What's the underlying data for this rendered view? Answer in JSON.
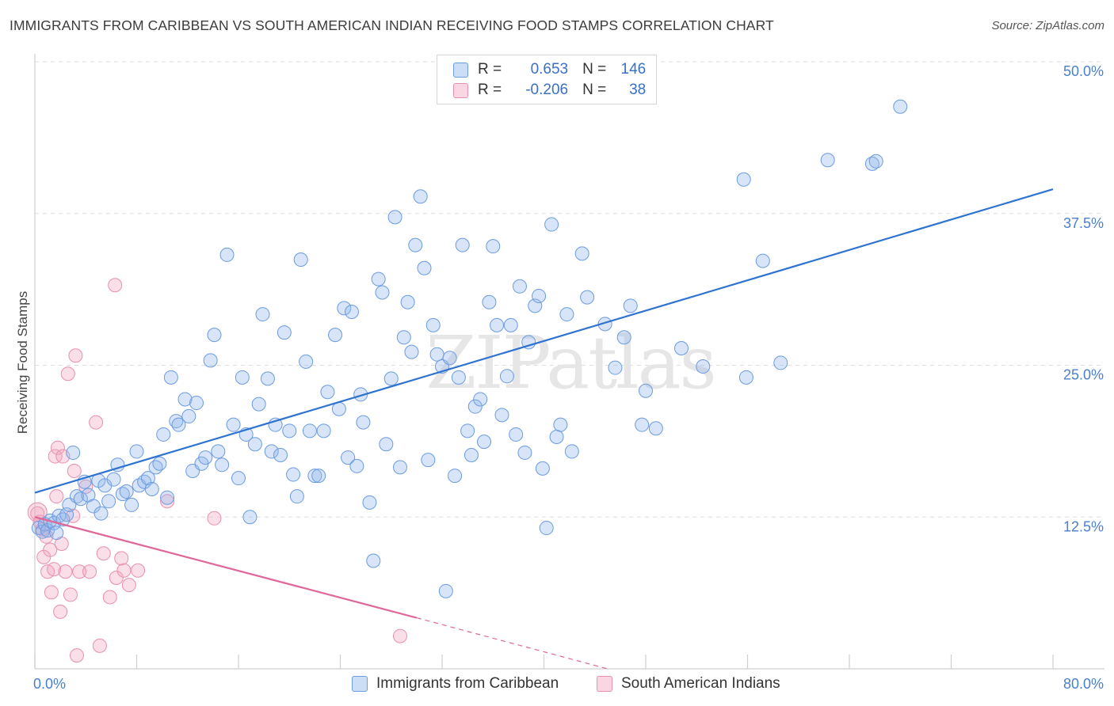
{
  "title": "IMMIGRANTS FROM CARIBBEAN VS SOUTH AMERICAN INDIAN RECEIVING FOOD STAMPS CORRELATION CHART",
  "source": "Source: ZipAtlas.com",
  "watermark": "ZIPatlas",
  "legend": {
    "rows": [
      {
        "r_label": "R =",
        "r_value": "0.653",
        "n_label": "N =",
        "n_value": "146",
        "color": "#8fb4ea"
      },
      {
        "r_label": "R =",
        "r_value": "-0.206",
        "n_label": "N =",
        "n_value": "38",
        "color": "#f2a3bd"
      }
    ]
  },
  "bottom_legend": [
    {
      "label": "Immigrants from Caribbean",
      "color": "#8fb4ea"
    },
    {
      "label": "South American Indians",
      "color": "#f2a3bd"
    }
  ],
  "colors": {
    "blue_fill": "rgba(143,180,234,0.35)",
    "blue_stroke": "#6b9be0",
    "blue_line": "#2f73d0",
    "pink_fill": "rgba(242,163,189,0.35)",
    "pink_stroke": "#e88fae",
    "pink_line": "#e0679a",
    "grid": "#dedede",
    "tick_label": "#4a7fd0"
  },
  "chart_data": {
    "type": "scatter",
    "title": "IMMIGRANTS FROM CARIBBEAN VS SOUTH AMERICAN INDIAN RECEIVING FOOD STAMPS CORRELATION CHART",
    "xlabel": "",
    "ylabel": "Receiving Food Stamps",
    "xlim": [
      0,
      80
    ],
    "ylim": [
      0,
      50
    ],
    "x_tick_labels": [
      "0.0%",
      "80.0%"
    ],
    "y_ticks": [
      12.5,
      25.0,
      37.5,
      50.0
    ],
    "y_tick_labels": [
      "12.5%",
      "25.0%",
      "37.5%",
      "50.0%"
    ],
    "grid": "horizontal dashed",
    "legend_position": "top-center",
    "series": [
      {
        "name": "Immigrants from Caribbean",
        "r": 0.653,
        "n": 146,
        "trend": {
          "x": [
            0,
            80
          ],
          "y": [
            14.5,
            39.5
          ],
          "style": "solid"
        },
        "points": [
          [
            0.3,
            11.6
          ],
          [
            0.6,
            11.3
          ],
          [
            0.8,
            11.9
          ],
          [
            1.0,
            11.4
          ],
          [
            1.2,
            12.2
          ],
          [
            1.5,
            12.0
          ],
          [
            1.7,
            11.2
          ],
          [
            1.9,
            12.6
          ],
          [
            2.2,
            12.3
          ],
          [
            2.5,
            12.7
          ],
          [
            2.7,
            13.5
          ],
          [
            3.0,
            17.8
          ],
          [
            3.3,
            14.2
          ],
          [
            3.6,
            14.0
          ],
          [
            3.9,
            15.4
          ],
          [
            4.2,
            14.3
          ],
          [
            4.6,
            13.4
          ],
          [
            5.0,
            15.5
          ],
          [
            5.2,
            12.8
          ],
          [
            5.5,
            15.1
          ],
          [
            5.8,
            13.8
          ],
          [
            6.2,
            15.6
          ],
          [
            6.5,
            16.8
          ],
          [
            6.9,
            14.4
          ],
          [
            7.2,
            14.6
          ],
          [
            7.6,
            13.5
          ],
          [
            8.0,
            17.9
          ],
          [
            8.2,
            15.1
          ],
          [
            8.6,
            15.4
          ],
          [
            8.9,
            15.7
          ],
          [
            9.2,
            14.8
          ],
          [
            9.5,
            16.6
          ],
          [
            9.8,
            16.9
          ],
          [
            10.1,
            19.3
          ],
          [
            10.4,
            14.1
          ],
          [
            10.7,
            24.0
          ],
          [
            11.1,
            20.4
          ],
          [
            11.3,
            20.1
          ],
          [
            11.8,
            22.2
          ],
          [
            12.1,
            20.8
          ],
          [
            12.4,
            16.3
          ],
          [
            12.7,
            21.9
          ],
          [
            13.1,
            16.9
          ],
          [
            13.4,
            17.4
          ],
          [
            13.8,
            25.4
          ],
          [
            14.1,
            27.5
          ],
          [
            14.4,
            17.9
          ],
          [
            14.7,
            16.8
          ],
          [
            15.1,
            34.1
          ],
          [
            15.6,
            20.1
          ],
          [
            16.0,
            15.7
          ],
          [
            16.3,
            24.0
          ],
          [
            16.6,
            19.3
          ],
          [
            16.9,
            12.5
          ],
          [
            17.3,
            18.5
          ],
          [
            17.6,
            21.8
          ],
          [
            17.9,
            29.2
          ],
          [
            18.3,
            23.9
          ],
          [
            18.6,
            17.9
          ],
          [
            18.9,
            20.1
          ],
          [
            19.3,
            17.6
          ],
          [
            19.6,
            27.7
          ],
          [
            20.0,
            19.6
          ],
          [
            20.3,
            16.0
          ],
          [
            20.6,
            14.2
          ],
          [
            20.9,
            33.7
          ],
          [
            21.3,
            25.3
          ],
          [
            21.6,
            19.6
          ],
          [
            22.0,
            15.9
          ],
          [
            22.3,
            15.9
          ],
          [
            22.7,
            19.6
          ],
          [
            23.0,
            22.8
          ],
          [
            23.6,
            27.5
          ],
          [
            23.9,
            21.4
          ],
          [
            24.3,
            29.7
          ],
          [
            24.6,
            17.4
          ],
          [
            24.9,
            29.4
          ],
          [
            25.3,
            16.7
          ],
          [
            25.6,
            22.6
          ],
          [
            25.8,
            20.3
          ],
          [
            26.3,
            13.7
          ],
          [
            26.6,
            8.9
          ],
          [
            27.0,
            32.1
          ],
          [
            27.3,
            31.0
          ],
          [
            27.6,
            18.5
          ],
          [
            28.0,
            23.9
          ],
          [
            28.3,
            37.2
          ],
          [
            28.7,
            16.6
          ],
          [
            29.0,
            27.3
          ],
          [
            29.3,
            30.2
          ],
          [
            29.6,
            26.1
          ],
          [
            29.9,
            34.9
          ],
          [
            30.3,
            38.9
          ],
          [
            30.6,
            33.0
          ],
          [
            30.9,
            17.2
          ],
          [
            31.3,
            28.3
          ],
          [
            31.6,
            25.9
          ],
          [
            32.0,
            24.9
          ],
          [
            32.3,
            6.4
          ],
          [
            32.6,
            25.6
          ],
          [
            33.0,
            15.9
          ],
          [
            33.3,
            24.0
          ],
          [
            33.6,
            34.9
          ],
          [
            34.0,
            19.6
          ],
          [
            34.3,
            17.6
          ],
          [
            34.6,
            21.6
          ],
          [
            35.0,
            22.2
          ],
          [
            35.3,
            18.7
          ],
          [
            35.7,
            30.2
          ],
          [
            36.0,
            34.8
          ],
          [
            36.3,
            28.3
          ],
          [
            36.7,
            20.9
          ],
          [
            37.1,
            24.1
          ],
          [
            37.4,
            28.3
          ],
          [
            37.8,
            19.3
          ],
          [
            38.1,
            31.5
          ],
          [
            38.5,
            17.8
          ],
          [
            38.8,
            26.9
          ],
          [
            39.3,
            29.9
          ],
          [
            39.6,
            30.7
          ],
          [
            39.9,
            16.5
          ],
          [
            40.2,
            11.6
          ],
          [
            40.6,
            36.6
          ],
          [
            41.0,
            19.1
          ],
          [
            41.3,
            20.1
          ],
          [
            41.8,
            29.2
          ],
          [
            42.2,
            17.9
          ],
          [
            43.0,
            34.2
          ],
          [
            43.4,
            30.6
          ],
          [
            44.8,
            28.4
          ],
          [
            45.6,
            24.8
          ],
          [
            46.3,
            27.3
          ],
          [
            46.8,
            29.9
          ],
          [
            47.7,
            20.1
          ],
          [
            48.0,
            22.9
          ],
          [
            48.8,
            19.8
          ],
          [
            50.8,
            26.4
          ],
          [
            52.5,
            24.9
          ],
          [
            55.7,
            40.3
          ],
          [
            55.9,
            24.0
          ],
          [
            57.2,
            33.6
          ],
          [
            58.6,
            25.2
          ],
          [
            62.3,
            41.9
          ],
          [
            65.8,
            41.6
          ],
          [
            66.1,
            41.8
          ],
          [
            68.0,
            46.3
          ]
        ]
      },
      {
        "name": "South American Indians",
        "r": -0.206,
        "n": 38,
        "trend": {
          "x": [
            0,
            30,
            45
          ],
          "y": [
            12.5,
            4.2,
            0
          ],
          "style": "solid to 30, dashed beyond"
        },
        "points": [
          [
            0.2,
            12.8
          ],
          [
            0.4,
            12.1
          ],
          [
            0.6,
            11.5
          ],
          [
            0.7,
            9.2
          ],
          [
            0.9,
            10.9
          ],
          [
            1.0,
            8.0
          ],
          [
            1.2,
            9.8
          ],
          [
            1.3,
            6.3
          ],
          [
            1.5,
            8.2
          ],
          [
            1.6,
            17.5
          ],
          [
            1.7,
            14.2
          ],
          [
            1.8,
            18.2
          ],
          [
            2.0,
            4.7
          ],
          [
            2.1,
            10.3
          ],
          [
            2.2,
            17.5
          ],
          [
            2.4,
            8.0
          ],
          [
            2.6,
            24.3
          ],
          [
            2.8,
            6.1
          ],
          [
            3.0,
            12.6
          ],
          [
            3.1,
            16.3
          ],
          [
            3.2,
            25.8
          ],
          [
            3.3,
            1.1
          ],
          [
            3.5,
            8.0
          ],
          [
            4.0,
            15.0
          ],
          [
            4.3,
            8.0
          ],
          [
            4.8,
            20.3
          ],
          [
            5.1,
            1.9
          ],
          [
            5.4,
            9.5
          ],
          [
            5.9,
            5.9
          ],
          [
            6.3,
            31.6
          ],
          [
            6.4,
            7.5
          ],
          [
            6.8,
            9.1
          ],
          [
            7.0,
            8.1
          ],
          [
            7.4,
            6.9
          ],
          [
            8.1,
            8.1
          ],
          [
            10.4,
            13.8
          ],
          [
            14.1,
            12.4
          ],
          [
            28.7,
            2.7
          ]
        ]
      }
    ]
  }
}
